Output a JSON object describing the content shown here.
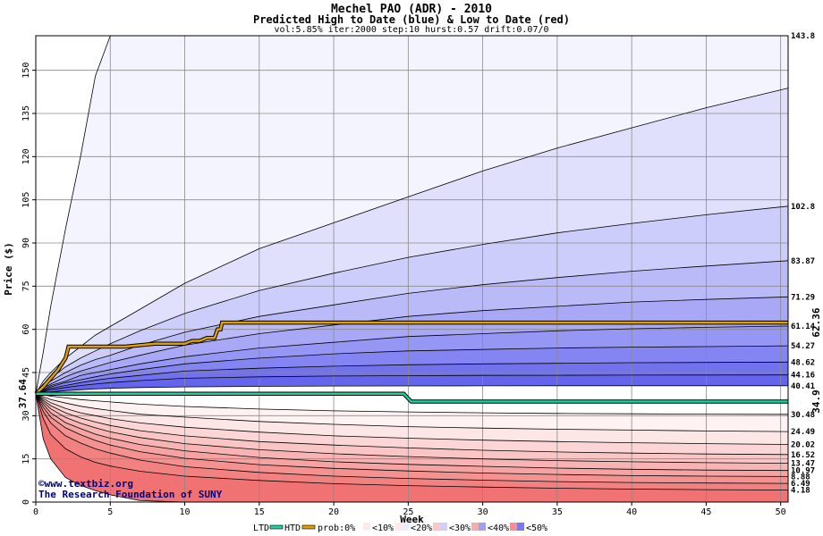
{
  "chart_data": {
    "type": "area",
    "title": "Mechel PAO (ADR) - 2010",
    "subtitle": "Predicted High to Date (blue) &  Low to Date (red)",
    "params": "vol:5.85% iter:2000 step:10 hurst:0.57 drift:0.07/0",
    "xlabel": "Week",
    "ylabel": "Price ($)",
    "xlim": [
      0,
      50.5
    ],
    "ylim": [
      0,
      162
    ],
    "x_ticks": [
      0,
      5,
      10,
      15,
      20,
      25,
      30,
      35,
      40,
      45,
      50
    ],
    "y_ticks": [
      0,
      15,
      30,
      45,
      60,
      75,
      90,
      105,
      120,
      135,
      150
    ],
    "grid": true,
    "start_price": 37.64,
    "start_label": "37.64",
    "x": [
      0,
      0.5,
      1,
      2,
      3,
      4,
      5,
      7,
      10,
      15,
      20,
      25,
      30,
      35,
      40,
      45,
      50.5
    ],
    "high_quantiles": [
      {
        "label": "143.8",
        "values": [
          37.64,
          52,
          68,
          95,
          120,
          148,
          162,
          162,
          162,
          162,
          162,
          162,
          162,
          162,
          162,
          162,
          162
        ]
      },
      {
        "label": "",
        "values": [
          37.64,
          42,
          45,
          50,
          54,
          58,
          61,
          67,
          76,
          88,
          97,
          106,
          115,
          123,
          130,
          137,
          143.8
        ]
      },
      {
        "label": "102.8",
        "values": [
          37.64,
          41,
          43,
          47,
          50,
          52.5,
          55,
          59.5,
          65.5,
          73.5,
          79.5,
          85,
          89.5,
          93.5,
          96.8,
          99.8,
          102.8
        ]
      },
      {
        "label": "83.87",
        "values": [
          37.64,
          40,
          42,
          45,
          47.5,
          49.5,
          51,
          54.5,
          59,
          64.5,
          68.5,
          72.5,
          75.5,
          78,
          80.2,
          82,
          83.87
        ]
      },
      {
        "label": "71.29",
        "values": [
          37.64,
          39.5,
          41,
          43.5,
          45.5,
          47,
          48.5,
          51,
          54.5,
          58.5,
          61.5,
          64.5,
          66.5,
          68,
          69.5,
          70.4,
          71.29
        ]
      },
      {
        "label": "61.14",
        "values": [
          37.64,
          39,
          40.5,
          42,
          44,
          45,
          46,
          48,
          50.5,
          53.5,
          55.5,
          57.5,
          58.5,
          59.5,
          60.2,
          60.7,
          61.14
        ]
      },
      {
        "label": "54.27",
        "values": [
          37.64,
          38.8,
          40,
          41.5,
          42.5,
          43.5,
          44.5,
          46,
          48,
          50,
          51.5,
          52.5,
          53,
          53.5,
          53.8,
          54,
          54.27
        ]
      },
      {
        "label": "48.62",
        "values": [
          37.64,
          38.5,
          39.5,
          40.5,
          41.5,
          42.3,
          43,
          44,
          45.5,
          46.5,
          47.2,
          47.7,
          48,
          48.2,
          48.4,
          48.5,
          48.62
        ]
      },
      {
        "label": "44.16",
        "values": [
          37.64,
          38.3,
          39,
          39.8,
          40.5,
          41,
          41.5,
          42.2,
          43,
          43.5,
          43.8,
          43.9,
          44,
          44.05,
          44.1,
          44.13,
          44.16
        ]
      },
      {
        "label": "40.41",
        "values": [
          37.64,
          38,
          38.3,
          38.7,
          39,
          39.3,
          39.5,
          39.8,
          40,
          40.2,
          40.3,
          40.35,
          40.38,
          40.4,
          40.4,
          40.41,
          40.41
        ]
      }
    ],
    "low_quantiles": [
      {
        "label": "30.48",
        "values": [
          37.64,
          37.2,
          36.8,
          36.2,
          35.6,
          35.2,
          34.8,
          34,
          33.2,
          32.3,
          31.7,
          31.3,
          31,
          30.8,
          30.65,
          30.55,
          30.48
        ]
      },
      {
        "label": "24.49",
        "values": [
          37.64,
          36.6,
          35.6,
          34.4,
          33.3,
          32.5,
          31.8,
          30.5,
          29.5,
          28,
          27,
          26.2,
          25.7,
          25.3,
          25,
          24.7,
          24.49
        ]
      },
      {
        "label": "20.02",
        "values": [
          37.64,
          36,
          34.5,
          32.5,
          31,
          30,
          29,
          27.5,
          26,
          24.3,
          23,
          22.2,
          21.5,
          21,
          20.6,
          20.3,
          20.02
        ]
      },
      {
        "label": "16.52",
        "values": [
          37.64,
          35.4,
          33.5,
          31,
          29.2,
          27.8,
          26.6,
          24.8,
          23,
          21,
          19.8,
          18.8,
          18,
          17.4,
          17,
          16.7,
          16.52
        ]
      },
      {
        "label": "13.47",
        "values": [
          37.64,
          34.8,
          32.4,
          29.4,
          27.4,
          25.8,
          24.4,
          22.4,
          20.3,
          18.2,
          16.8,
          15.8,
          15,
          14.4,
          14,
          13.7,
          13.47
        ]
      },
      {
        "label": "10.97",
        "values": [
          37.64,
          34,
          31,
          27.6,
          25.5,
          23.6,
          22.2,
          20,
          17.8,
          15.5,
          14,
          13.1,
          12.4,
          11.8,
          11.4,
          11.1,
          10.97
        ]
      },
      {
        "label": "8.88",
        "values": [
          37.64,
          33,
          29.5,
          25.8,
          23.4,
          21.4,
          19.8,
          17.5,
          15.2,
          13,
          11.7,
          10.8,
          10.1,
          9.6,
          9.2,
          9,
          8.88
        ]
      },
      {
        "label": "6.49",
        "values": [
          37.64,
          31.5,
          27.5,
          23,
          20.5,
          18.5,
          17,
          14.6,
          12.3,
          10.3,
          9,
          8.2,
          7.6,
          7.1,
          6.8,
          6.6,
          6.49
        ]
      },
      {
        "label": "4.18",
        "values": [
          37.64,
          29,
          23.5,
          18.5,
          15.7,
          13.8,
          12.5,
          10.7,
          9,
          7.5,
          6.4,
          5.7,
          5.2,
          4.8,
          4.5,
          4.3,
          4.18
        ]
      },
      {
        "label": "",
        "values": [
          37.64,
          22,
          15,
          8.5,
          5.8,
          4,
          2.5,
          0.5,
          0,
          0,
          0,
          0,
          0,
          0,
          0,
          0,
          0
        ]
      }
    ],
    "htd": {
      "name": "HTD",
      "label": "62.36",
      "x": [
        0,
        0.5,
        1,
        1.5,
        2,
        2.1,
        2.2,
        4,
        6,
        8,
        10,
        10.5,
        11,
        11.5,
        12,
        12.2,
        12.4,
        12.5,
        50.5
      ],
      "values": [
        37.64,
        40,
        43,
        46,
        50,
        52,
        54,
        54,
        54,
        55,
        55,
        56,
        56,
        57,
        57,
        60,
        60,
        62.36,
        62.36
      ]
    },
    "ltd": {
      "name": "LTD",
      "label": "34.9",
      "x": [
        0,
        24.7,
        25,
        25.2,
        50.5
      ],
      "values": [
        37.64,
        37.64,
        36,
        34.9,
        34.9
      ]
    },
    "legend": {
      "items": [
        "LTD",
        "HTD",
        "prob:0%",
        "<10%",
        "<20%",
        "<30%",
        "<40%",
        "<50%"
      ]
    },
    "credit": [
      "www.textbiz.org",
      "The Research Foundation of SUNY"
    ],
    "colors": {
      "blue_bands": [
        "#f4f4ff",
        "#e0e0fd",
        "#cdcdfb",
        "#babaf9",
        "#a8a8f7",
        "#9696f5",
        "#8484f2",
        "#7272ef",
        "#6464ec"
      ],
      "red_bands": [
        "#fff2f2",
        "#fde6e6",
        "#fcd6d6",
        "#fac5c5",
        "#f8b4b4",
        "#f6a3a3",
        "#f49292",
        "#f28282",
        "#f07272"
      ],
      "htd_line": "#e0a000",
      "ltd_line": "#20d0a0",
      "htd_text": "#a07000",
      "ltd_text": "#009060",
      "start_text": "#006040"
    }
  }
}
